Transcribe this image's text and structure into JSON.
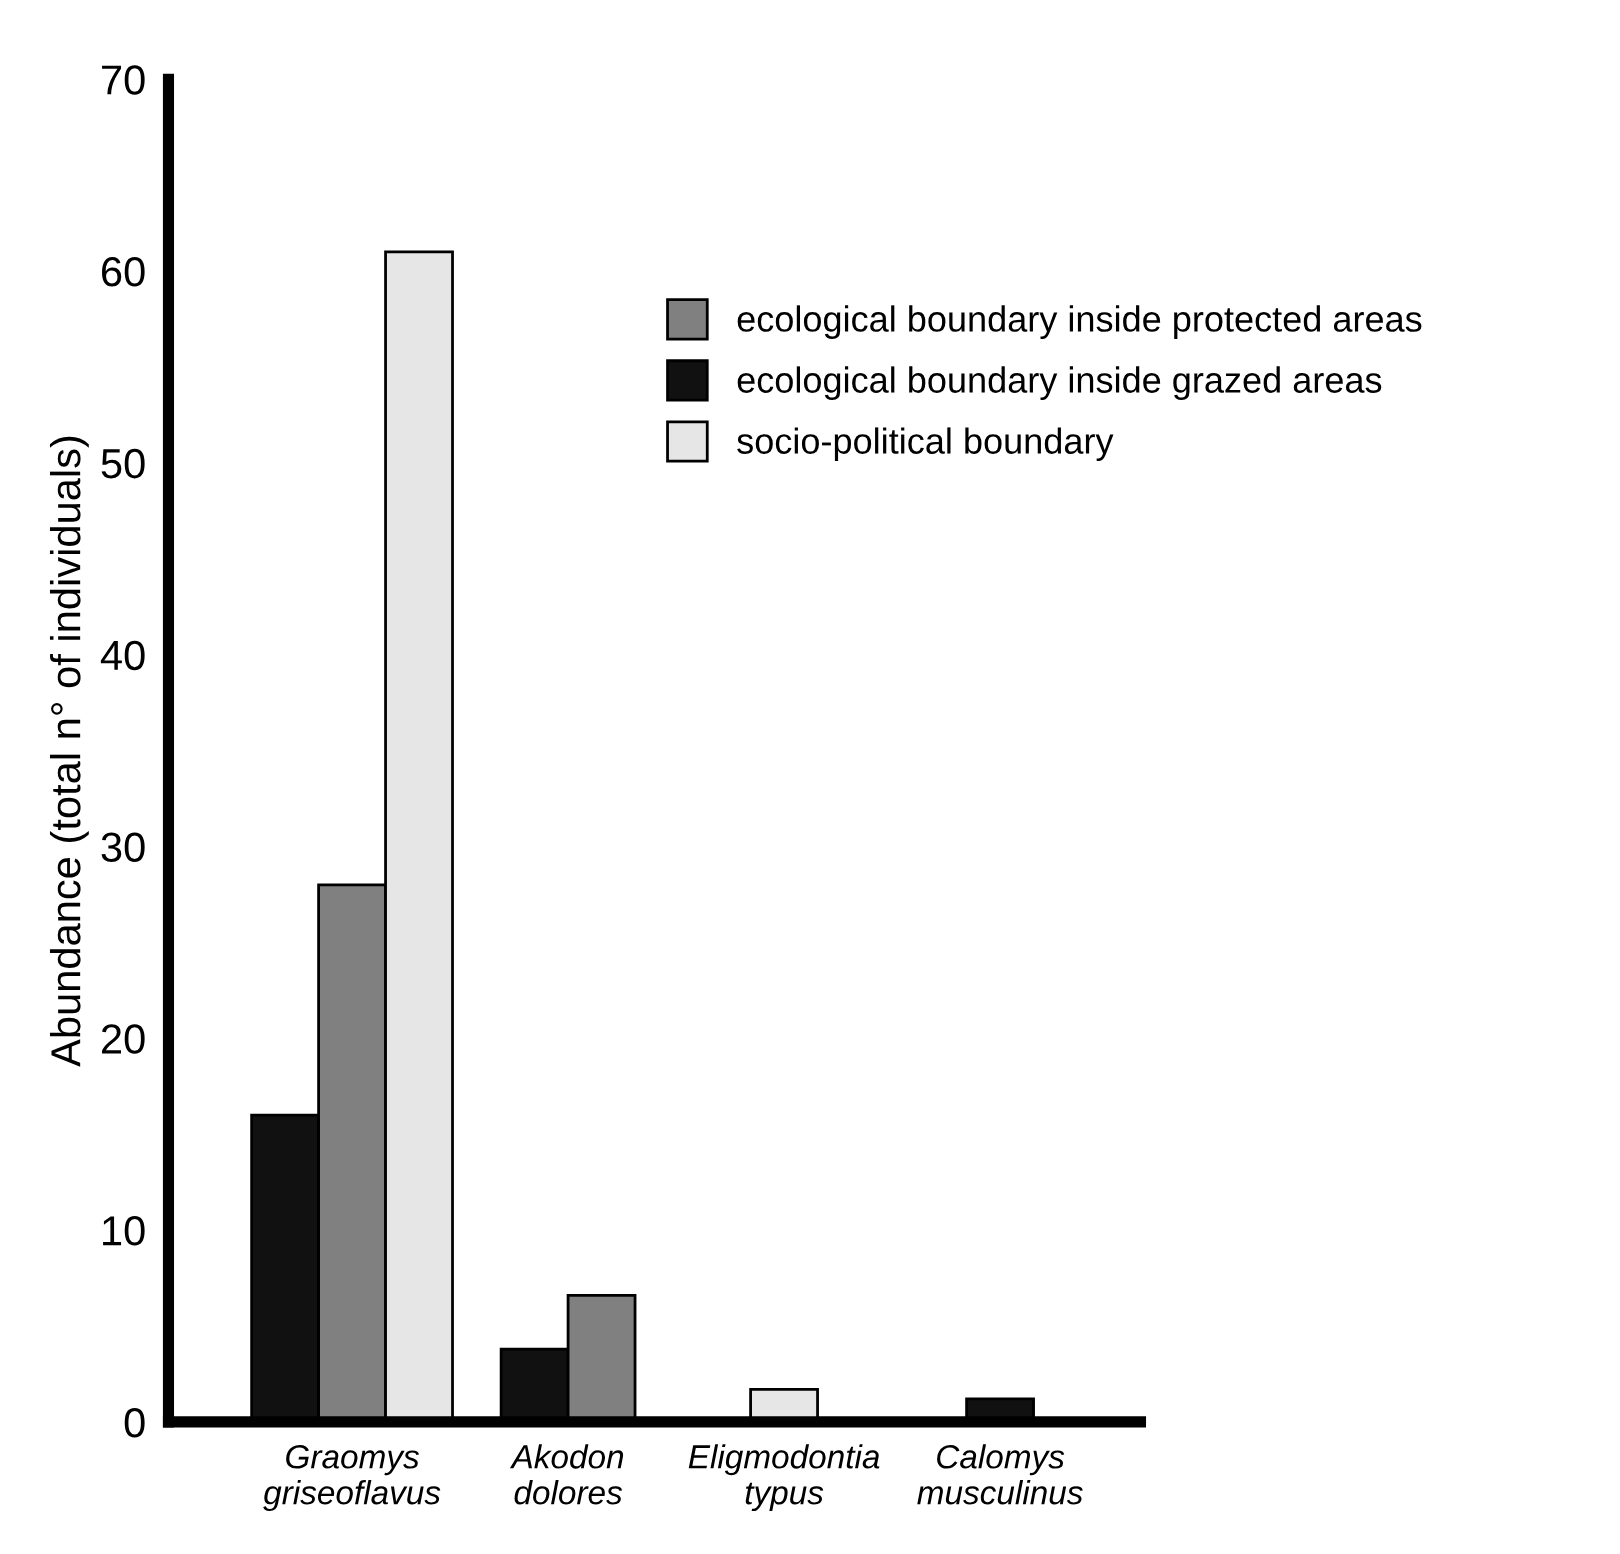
{
  "chart_data": {
    "type": "bar",
    "ylabel": "Abundance (total n° of individuals)",
    "categories": [
      "Graomys\ngriseoflavus",
      "Akodon\ndolores",
      "Eligmodontia\ntypus",
      "Calomys\nmusculinus"
    ],
    "series": [
      {
        "name": "ecological boundary inside grazed areas",
        "color": "#111111",
        "values": [
          16,
          3.8,
          null,
          1.2
        ]
      },
      {
        "name": "ecological boundary inside protected areas",
        "color": "#808080",
        "values": [
          28,
          6.6,
          null,
          null
        ]
      },
      {
        "name": "socio-political boundary",
        "color": "#e6e6e6",
        "values": [
          61,
          null,
          1.7,
          null
        ]
      }
    ],
    "ylim": [
      0,
      70
    ],
    "yticks": [
      0,
      10,
      20,
      30,
      40,
      50,
      60,
      70
    ],
    "grid": false,
    "legend": "top right"
  }
}
